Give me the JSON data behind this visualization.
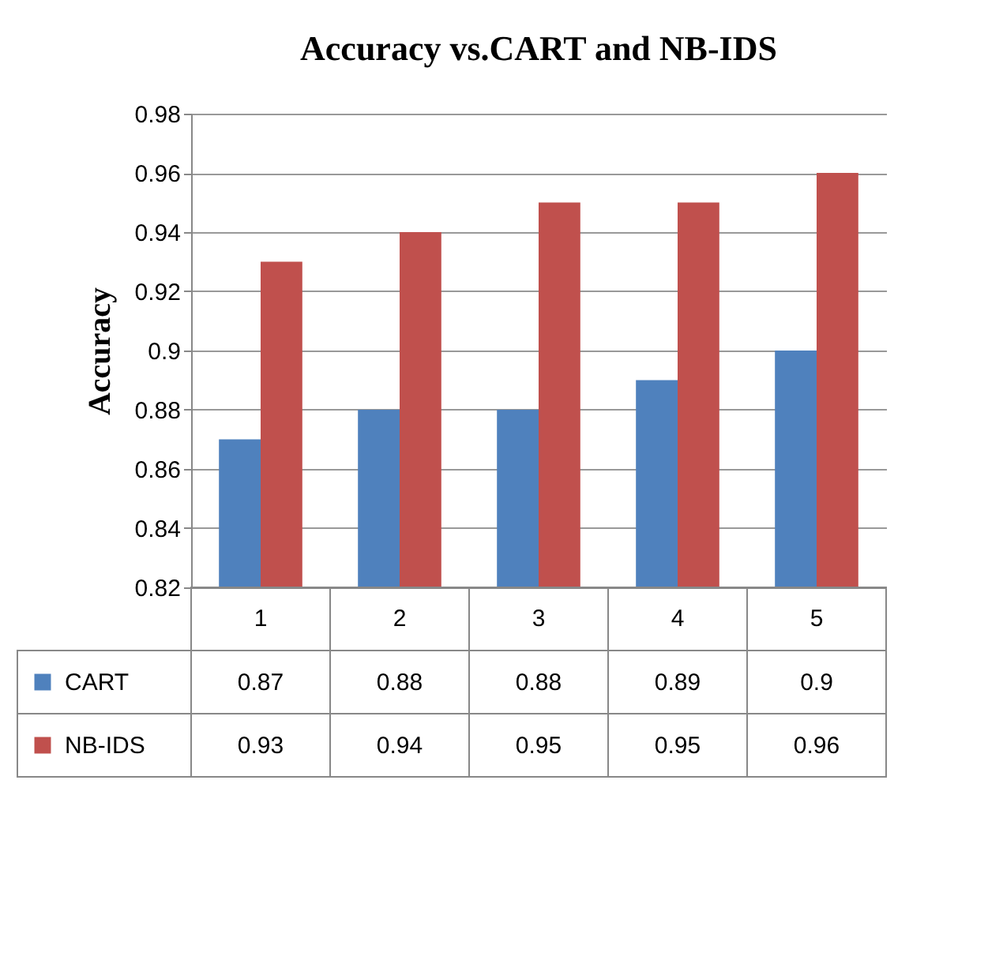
{
  "chart_data": {
    "type": "bar",
    "title": "Accuracy vs.CART and NB-IDS",
    "ylabel": "Accuracy",
    "categories": [
      "1",
      "2",
      "3",
      "4",
      "5"
    ],
    "series": [
      {
        "name": "CART",
        "color": "#4f81bd",
        "values": [
          0.87,
          0.88,
          0.88,
          0.89,
          0.9
        ]
      },
      {
        "name": "NB-IDS",
        "color": "#c0504d",
        "values": [
          0.93,
          0.94,
          0.95,
          0.95,
          0.96
        ]
      }
    ],
    "ylim": [
      0.82,
      0.98
    ],
    "yticks": [
      0.82,
      0.84,
      0.86,
      0.88,
      0.9,
      0.92,
      0.94,
      0.96,
      0.98
    ],
    "grid": "y",
    "data_labels": true,
    "legend": "bottom left"
  }
}
